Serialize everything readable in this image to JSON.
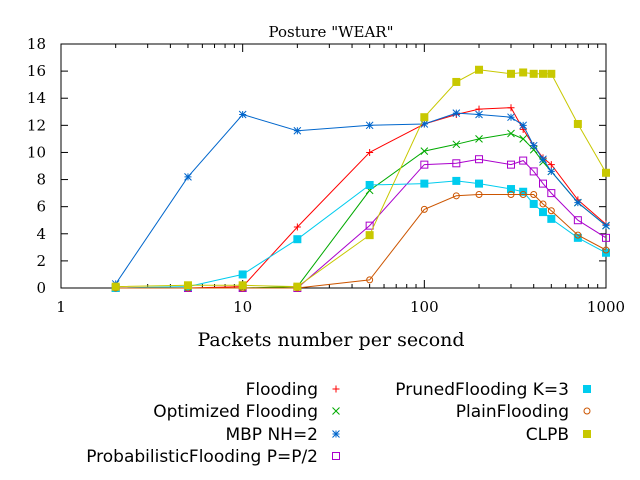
{
  "chart_data": {
    "type": "line",
    "title": "Posture \"WEAR\"",
    "xlabel": "Packets number per second",
    "ylabel": "",
    "xscale": "log",
    "xlim": [
      1,
      1000
    ],
    "ylim": [
      0,
      18
    ],
    "x_tick_labels": [
      "1",
      "10",
      "100",
      "1000"
    ],
    "y_tick_labels": [
      "0",
      "2",
      "4",
      "6",
      "8",
      "10",
      "12",
      "14",
      "16",
      "18"
    ],
    "grid": false,
    "legend_position": "bottom",
    "series": [
      {
        "name": "Flooding",
        "color": "#ff0000",
        "marker": "plus",
        "x": [
          2,
          5,
          10,
          20,
          50,
          100,
          150,
          200,
          300,
          350,
          400,
          450,
          500,
          700,
          1000
        ],
        "y": [
          0.0,
          0.0,
          0.1,
          4.5,
          10.0,
          12.1,
          12.8,
          13.2,
          13.3,
          11.7,
          10.5,
          9.6,
          9.1,
          6.5,
          4.7
        ]
      },
      {
        "name": "Optimized Flooding",
        "color": "#00aa00",
        "marker": "x",
        "x": [
          2,
          5,
          10,
          20,
          50,
          100,
          150,
          200,
          300,
          350,
          400,
          450,
          500,
          700,
          1000
        ],
        "y": [
          0.0,
          0.0,
          0.0,
          0.1,
          7.2,
          10.1,
          10.6,
          11.0,
          11.4,
          11.0,
          10.2,
          9.3,
          8.6,
          6.3,
          4.6
        ]
      },
      {
        "name": "MBP NH=2",
        "color": "#0066cc",
        "marker": "star",
        "x": [
          2,
          5,
          10,
          20,
          50,
          100,
          150,
          200,
          300,
          350,
          400,
          450,
          500,
          700,
          1000
        ],
        "y": [
          0.3,
          8.2,
          12.8,
          11.6,
          12.0,
          12.1,
          12.9,
          12.8,
          12.6,
          12.0,
          10.5,
          9.5,
          8.6,
          6.3,
          4.6
        ]
      },
      {
        "name": "ProbabilisticFlooding P=P/2",
        "color": "#aa00cc",
        "marker": "square-open",
        "x": [
          2,
          5,
          10,
          20,
          50,
          100,
          150,
          200,
          300,
          350,
          400,
          450,
          500,
          700,
          1000
        ],
        "y": [
          0.0,
          0.0,
          0.0,
          0.0,
          4.6,
          9.1,
          9.2,
          9.5,
          9.1,
          9.4,
          8.6,
          7.7,
          7.0,
          5.0,
          3.7
        ]
      },
      {
        "name": "PrunedFlooding K=3",
        "color": "#00ccee",
        "marker": "square-filled",
        "x": [
          2,
          5,
          10,
          20,
          50,
          100,
          150,
          200,
          300,
          350,
          400,
          450,
          500,
          700,
          1000
        ],
        "y": [
          0.0,
          0.1,
          1.0,
          3.6,
          7.6,
          7.7,
          7.9,
          7.7,
          7.3,
          7.1,
          6.2,
          5.6,
          5.1,
          3.7,
          2.6
        ]
      },
      {
        "name": "PlainFlooding",
        "color": "#cc5500",
        "marker": "circle-open",
        "x": [
          2,
          5,
          10,
          20,
          50,
          100,
          150,
          200,
          300,
          350,
          400,
          450,
          500,
          700,
          1000
        ],
        "y": [
          0.0,
          0.0,
          0.0,
          0.0,
          0.6,
          5.8,
          6.8,
          6.9,
          6.9,
          6.9,
          6.9,
          6.2,
          5.7,
          3.9,
          2.8
        ]
      },
      {
        "name": "CLPB",
        "color": "#c8c800",
        "marker": "square-filled",
        "x": [
          2,
          5,
          10,
          20,
          50,
          100,
          150,
          200,
          300,
          350,
          400,
          450,
          500,
          700,
          1000
        ],
        "y": [
          0.1,
          0.2,
          0.2,
          0.1,
          3.9,
          12.6,
          15.2,
          16.1,
          15.8,
          15.9,
          15.8,
          15.8,
          15.8,
          12.1,
          8.5
        ]
      }
    ]
  }
}
